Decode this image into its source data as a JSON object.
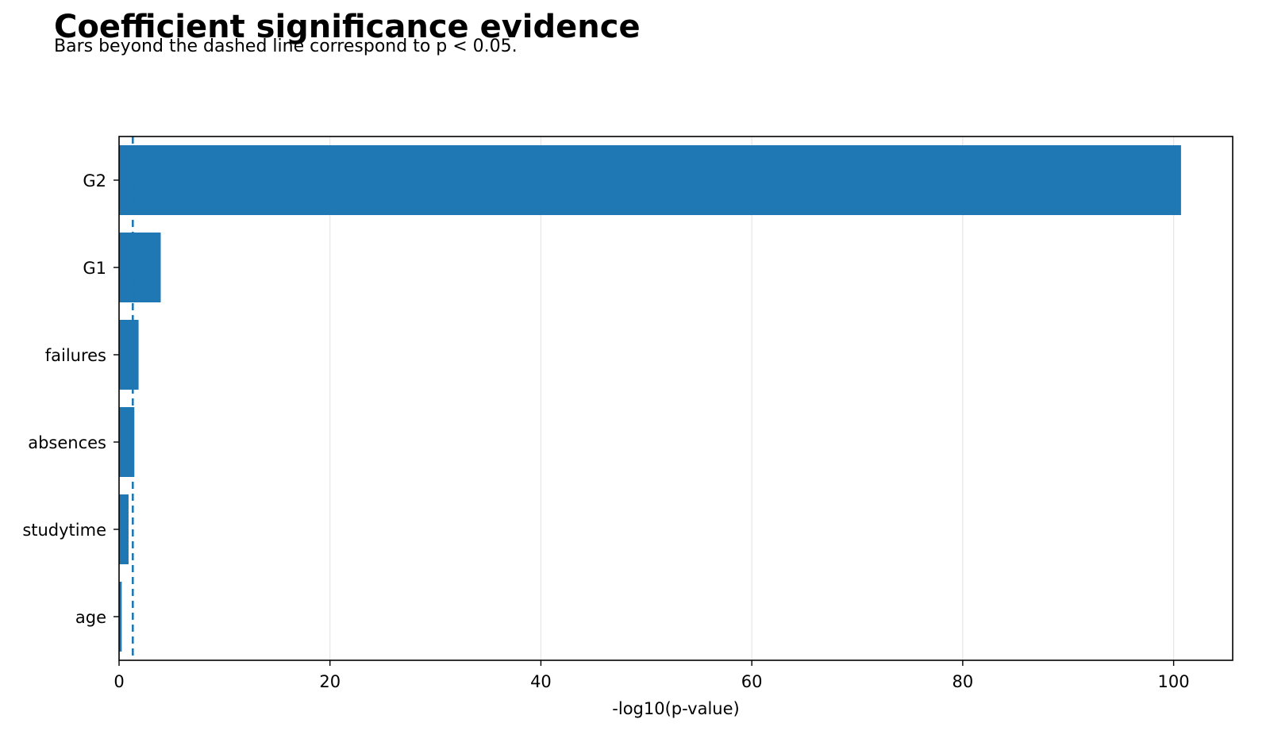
{
  "chart_data": {
    "type": "bar",
    "orientation": "horizontal",
    "title": "Coefficient significance evidence",
    "subtitle": "Bars beyond the dashed line correspond to p < 0.05.",
    "xlabel": "-log10(p-value)",
    "ylabel": "",
    "categories": [
      "G2",
      "G1",
      "failures",
      "absences",
      "studytime",
      "age"
    ],
    "values": [
      100.7,
      3.95,
      1.85,
      1.45,
      0.9,
      0.25
    ],
    "xlim": [
      0,
      105.6
    ],
    "xticks": [
      0,
      20,
      40,
      60,
      80,
      100
    ],
    "xtick_labels": [
      "0",
      "20",
      "40",
      "60",
      "80",
      "100"
    ],
    "threshold": 1.301,
    "threshold_style": "dashed",
    "bar_color": "#1f77b4",
    "threshold_color": "#1f77b4",
    "grid": "x",
    "legend": "none"
  }
}
